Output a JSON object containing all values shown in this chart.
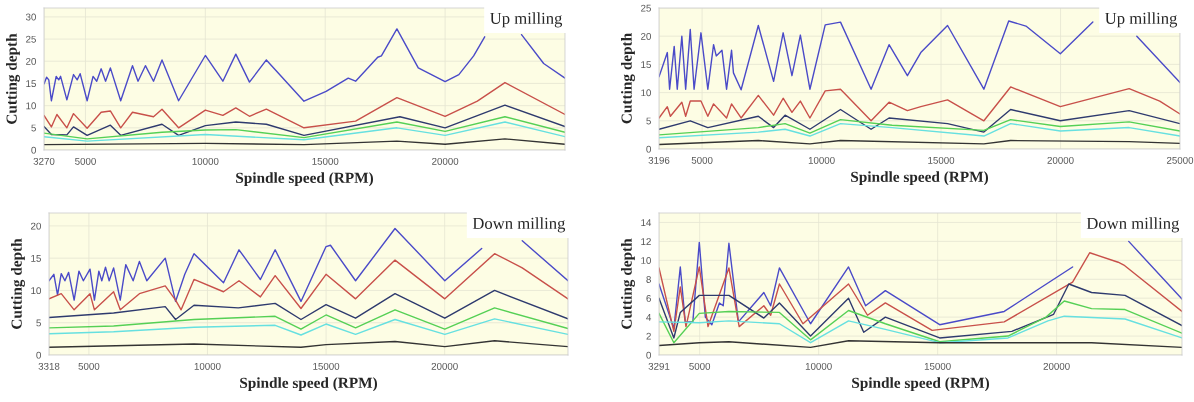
{
  "chart_data": [
    {
      "type": "line",
      "xlabel": "Spindle speed (RPM)",
      "ylabel": "Cutting depth",
      "annotations": [
        "Up milling"
      ],
      "xlim": [
        3270,
        25000
      ],
      "xticks": [
        3270,
        5000,
        10000,
        15000,
        20000
      ],
      "ylim": [
        0,
        32
      ],
      "yticks": [
        0,
        5,
        10,
        15,
        20,
        25,
        30
      ],
      "grid": true,
      "series": [
        {
          "color": "#4a4ac8",
          "x": [
            3270,
            3378,
            3470,
            3578,
            3778,
            3885,
            3962,
            4224,
            4500,
            4654,
            4777,
            5069,
            5316,
            5469,
            5654,
            5838,
            6038,
            6469,
            6961,
            7192,
            7500,
            7838,
            8192,
            8884,
            10000,
            10730,
            11270,
            11840,
            12544,
            14113,
            15036,
            15959,
            16267,
            17189,
            17343,
            17989,
            18880,
            20000,
            20573,
            21190,
            21650,
            22300,
            23187,
            24110,
            25000
          ],
          "values": [
            14.9,
            16.4,
            15.8,
            11.1,
            16.6,
            15.8,
            16.6,
            11.3,
            17.0,
            15.8,
            17.2,
            11.1,
            16.6,
            15.5,
            18.3,
            15.5,
            18.5,
            11.1,
            19.0,
            15.5,
            19.0,
            15.5,
            20.3,
            11.1,
            21.3,
            15.5,
            21.6,
            15.3,
            20.3,
            11.0,
            13.2,
            16.2,
            15.5,
            20.9,
            21.2,
            27.3,
            18.5,
            15.4,
            17.0,
            21.2,
            25.5,
            null,
            26.0,
            19.5,
            16.2
          ]
        },
        {
          "color": "#c8504a",
          "x": [
            3270,
            3578,
            3808,
            4224,
            4500,
            5069,
            5654,
            6038,
            6469,
            6961,
            7838,
            8192,
            8884,
            10000,
            10730,
            11270,
            11840,
            12544,
            14113,
            16267,
            17989,
            20000,
            21344,
            22495,
            25000
          ],
          "values": [
            7.8,
            5.2,
            8.0,
            5.0,
            8.2,
            4.9,
            8.5,
            8.8,
            5.0,
            8.5,
            7.5,
            9.2,
            5.0,
            9.0,
            7.8,
            9.5,
            7.6,
            9.2,
            5.0,
            6.5,
            11.8,
            7.6,
            11.0,
            15.2,
            8.0
          ]
        },
        {
          "color": "#2e3a6e",
          "x": [
            3270,
            3578,
            4224,
            4500,
            5069,
            6038,
            6469,
            8192,
            8884,
            10000,
            11270,
            12544,
            14113,
            18112,
            20000,
            22495,
            25000
          ],
          "values": [
            5.3,
            3.5,
            3.4,
            5.2,
            3.3,
            5.6,
            3.3,
            5.8,
            3.3,
            5.5,
            6.3,
            5.8,
            3.3,
            7.5,
            5.0,
            10.1,
            5.3
          ]
        },
        {
          "color": "#55d055",
          "x": [
            3270,
            5069,
            8192,
            10000,
            11270,
            14113,
            17989,
            20000,
            22495,
            25000
          ],
          "values": [
            3.8,
            2.5,
            4.0,
            4.5,
            4.6,
            2.8,
            6.3,
            4.2,
            7.5,
            4.0
          ]
        },
        {
          "color": "#66e0e0",
          "x": [
            3270,
            5069,
            10000,
            14113,
            17989,
            20000,
            22495,
            25000
          ],
          "values": [
            3.0,
            2.0,
            3.5,
            2.3,
            5.0,
            3.3,
            6.3,
            3.0
          ]
        },
        {
          "color": "#333333",
          "x": [
            3270,
            10000,
            14113,
            17989,
            20000,
            22495,
            25000
          ],
          "values": [
            1.2,
            1.5,
            1.2,
            2.0,
            1.3,
            2.5,
            1.3
          ]
        }
      ]
    },
    {
      "type": "line",
      "xlabel": "Spindle speed (RPM)",
      "ylabel": "Cutting depth",
      "annotations": [
        "Up milling"
      ],
      "xlim": [
        3196,
        25000
      ],
      "xticks": [
        3196,
        5000,
        10000,
        15000,
        20000,
        25000
      ],
      "ylim": [
        0,
        25
      ],
      "yticks": [
        0,
        5,
        10,
        15,
        20,
        25
      ],
      "grid": true,
      "series": [
        {
          "color": "#4a4ac8",
          "x": [
            3196,
            3544,
            3640,
            3832,
            3960,
            4152,
            4312,
            4504,
            4664,
            4952,
            5240,
            5480,
            5592,
            5832,
            6024,
            6232,
            6312,
            6632,
            7352,
            7992,
            8392,
            8760,
            9112,
            9512,
            10152,
            10792,
            12072,
            12824,
            13592,
            14152,
            15272,
            16792,
            17832,
            18552,
            19992,
            21352,
            22232,
            23192,
            25000
          ],
          "values": [
            12.8,
            17.1,
            10.6,
            18.2,
            10.6,
            20.0,
            10.6,
            21.2,
            10.6,
            20.6,
            10.6,
            18.5,
            16.5,
            17.5,
            10.6,
            17.5,
            13.5,
            10.5,
            21.9,
            12.0,
            20.6,
            13.0,
            20.2,
            10.6,
            22.0,
            22.5,
            10.6,
            18.5,
            13.0,
            17.1,
            21.9,
            10.6,
            22.7,
            21.8,
            16.9,
            22.5,
            null,
            20.0,
            11.8
          ]
        },
        {
          "color": "#c8504a",
          "x": [
            3196,
            3544,
            3672,
            4152,
            4312,
            4504,
            4952,
            5240,
            5480,
            6024,
            6232,
            6632,
            7352,
            7992,
            8392,
            8760,
            9112,
            9512,
            10152,
            10792,
            12072,
            12824,
            13592,
            14152,
            15272,
            16792,
            17912,
            19992,
            22872,
            24152,
            25000
          ],
          "values": [
            5.5,
            7.5,
            5.8,
            8.3,
            5.8,
            8.5,
            8.5,
            5.8,
            8.0,
            5.5,
            8.0,
            5.5,
            9.5,
            6.0,
            9.0,
            6.5,
            8.5,
            5.5,
            10.3,
            10.6,
            5.0,
            8.3,
            6.8,
            7.5,
            8.7,
            5.0,
            11.0,
            7.5,
            10.7,
            8.5,
            6.2
          ]
        },
        {
          "color": "#2e3a6e",
          "x": [
            3196,
            4504,
            5240,
            7352,
            7992,
            8472,
            9512,
            10792,
            12072,
            12824,
            15272,
            16792,
            17912,
            19992,
            22872,
            25000
          ],
          "values": [
            3.5,
            5.0,
            3.8,
            5.8,
            3.8,
            6.0,
            3.5,
            7.0,
            3.5,
            5.5,
            4.5,
            3.0,
            7.0,
            5.0,
            6.8,
            4.5
          ]
        },
        {
          "color": "#55d055",
          "x": [
            3196,
            7352,
            8472,
            9512,
            10792,
            12952,
            16792,
            17912,
            19992,
            22872,
            25000
          ],
          "values": [
            2.5,
            3.8,
            4.5,
            2.8,
            5.2,
            4.2,
            3.3,
            5.2,
            4.0,
            4.8,
            3.2
          ]
        },
        {
          "color": "#66e0e0",
          "x": [
            3196,
            7352,
            8472,
            9512,
            10792,
            12952,
            16792,
            17912,
            19992,
            22872,
            25000
          ],
          "values": [
            2.0,
            3.0,
            3.5,
            2.3,
            4.5,
            3.8,
            2.3,
            4.5,
            3.2,
            3.8,
            2.3
          ]
        },
        {
          "color": "#333333",
          "x": [
            3196,
            7352,
            9512,
            10792,
            16792,
            17912,
            22872,
            25000
          ],
          "values": [
            0.8,
            1.5,
            0.9,
            1.5,
            0.9,
            1.5,
            1.3,
            1.0
          ]
        }
      ]
    },
    {
      "type": "line",
      "xlabel": "Spindle speed (RPM)",
      "ylabel": "Cutting depth",
      "annotations": [
        "Down milling"
      ],
      "xlim": [
        3318,
        25200
      ],
      "xticks": [
        3318,
        5000,
        10000,
        15000,
        20000
      ],
      "ylim": [
        0,
        22
      ],
      "yticks": [
        0,
        5,
        10,
        15,
        20
      ],
      "grid": true,
      "series": [
        {
          "color": "#4a4ac8",
          "x": [
            3318,
            3523,
            3678,
            3834,
            3989,
            4145,
            4378,
            4580,
            4767,
            5047,
            5233,
            5420,
            5544,
            5700,
            5855,
            6042,
            6322,
            6555,
            6866,
            7130,
            7441,
            8219,
            8654,
            9043,
            9432,
            10676,
            11329,
            12231,
            12853,
            13942,
            14999,
            15185,
            16243,
            17907,
            20006,
            21561,
            22338,
            23271,
            25200
          ],
          "values": [
            11.5,
            12.5,
            9.3,
            12.6,
            11.5,
            12.8,
            8.5,
            13.0,
            11.5,
            13.3,
            8.5,
            13.0,
            11.5,
            13.6,
            11.5,
            13.5,
            8.5,
            14.0,
            11.5,
            14.5,
            11.5,
            15.0,
            8.3,
            12.5,
            15.7,
            11.2,
            16.3,
            11.7,
            16.3,
            8.3,
            16.8,
            17.0,
            11.5,
            19.6,
            11.5,
            16.5,
            null,
            17.7,
            11.5
          ]
        },
        {
          "color": "#c8504a",
          "x": [
            3318,
            3834,
            4378,
            5047,
            5233,
            6042,
            6322,
            7130,
            8219,
            8654,
            8888,
            9432,
            10676,
            11329,
            12231,
            12853,
            13942,
            14999,
            16243,
            17907,
            20006,
            22105,
            23271,
            25200
          ],
          "values": [
            8.7,
            9.5,
            7.0,
            9.5,
            7.0,
            9.8,
            7.0,
            9.5,
            10.7,
            8.5,
            7.0,
            11.7,
            9.8,
            11.5,
            9.0,
            12.3,
            7.2,
            12.5,
            8.7,
            14.7,
            8.7,
            15.7,
            13.5,
            8.7
          ]
        },
        {
          "color": "#2e3a6e",
          "x": [
            3318,
            6042,
            8219,
            8654,
            9432,
            11298,
            12853,
            13942,
            14999,
            16243,
            17907,
            20006,
            22105,
            25200
          ],
          "values": [
            5.8,
            6.5,
            7.5,
            5.5,
            7.7,
            7.3,
            8.0,
            5.5,
            7.8,
            5.7,
            9.5,
            5.7,
            10.0,
            5.6
          ]
        },
        {
          "color": "#55d055",
          "x": [
            3318,
            6042,
            9432,
            12853,
            13942,
            14999,
            16243,
            17907,
            20006,
            22105,
            25200
          ],
          "values": [
            4.2,
            4.5,
            5.5,
            6.0,
            4.0,
            6.2,
            4.2,
            7.0,
            4.0,
            7.3,
            4.1
          ]
        },
        {
          "color": "#66e0e0",
          "x": [
            3318,
            6042,
            9432,
            12853,
            13942,
            14999,
            16243,
            17907,
            20006,
            22105,
            25200
          ],
          "values": [
            3.3,
            3.6,
            4.3,
            4.6,
            3.1,
            4.8,
            3.2,
            5.5,
            3.2,
            5.6,
            3.2
          ]
        },
        {
          "color": "#333333",
          "x": [
            3318,
            9432,
            13942,
            14999,
            17907,
            20006,
            22105,
            25200
          ],
          "values": [
            1.2,
            1.7,
            1.2,
            1.6,
            2.1,
            1.3,
            2.2,
            1.3
          ]
        }
      ]
    },
    {
      "type": "line",
      "xlabel": "Spindle speed (RPM)",
      "ylabel": "Cutting depth",
      "annotations": [
        "Down milling"
      ],
      "xlim": [
        3291,
        25270
      ],
      "xticks": [
        3291,
        5000,
        10000,
        15000,
        20000
      ],
      "ylim": [
        0,
        15
      ],
      "yticks": [
        0,
        2,
        4,
        6,
        8,
        10,
        12,
        14
      ],
      "grid": true,
      "series": [
        {
          "color": "#4a4ac8",
          "x": [
            3291,
            3755,
            3915,
            4186,
            4394,
            4713,
            4984,
            5239,
            5511,
            5830,
            5990,
            6229,
            6628,
            7697,
            7984,
            8352,
            9660,
            11256,
            11974,
            12804,
            15086,
            17799,
            20672,
            21470,
            23031,
            25270
          ],
          "values": [
            7.5,
            4.0,
            2.8,
            9.3,
            3.5,
            3.5,
            11.9,
            4.0,
            3.2,
            5.5,
            5.2,
            11.8,
            3.5,
            6.6,
            5.2,
            9.2,
            3.3,
            9.3,
            5.2,
            6.8,
            3.2,
            4.6,
            9.3,
            null,
            12.0,
            5.9
          ]
        },
        {
          "color": "#c8504a",
          "x": [
            3291,
            3915,
            4186,
            4425,
            4984,
            5351,
            6229,
            6660,
            7697,
            7984,
            8352,
            9341,
            11256,
            12054,
            12804,
            14768,
            17799,
            20672,
            21391,
            22588,
            22827,
            25270
          ],
          "values": [
            9.2,
            2.5,
            7.2,
            3.0,
            9.3,
            3.0,
            9.2,
            3.0,
            5.2,
            4.2,
            7.5,
            3.3,
            7.5,
            4.2,
            5.5,
            2.6,
            3.5,
            7.7,
            10.8,
            9.8,
            9.5,
            4.6
          ]
        },
        {
          "color": "#2e3a6e",
          "x": [
            3291,
            3915,
            4186,
            4984,
            6229,
            7697,
            8352,
            9660,
            11256,
            11895,
            12804,
            15086,
            18119,
            19875,
            20513,
            21470,
            22876,
            25270
          ],
          "values": [
            6.0,
            1.8,
            4.5,
            6.3,
            6.3,
            3.9,
            5.5,
            2.0,
            6.0,
            2.4,
            4.0,
            1.8,
            2.5,
            4.3,
            7.5,
            6.6,
            6.3,
            3.1
          ]
        },
        {
          "color": "#55d055",
          "x": [
            3291,
            3915,
            4984,
            6229,
            8352,
            9660,
            11256,
            12804,
            15086,
            17959,
            19556,
            20322,
            21470,
            22876,
            25270
          ],
          "values": [
            4.4,
            1.3,
            4.4,
            4.6,
            4.5,
            1.6,
            4.7,
            3.3,
            1.4,
            2.0,
            4.0,
            5.7,
            4.9,
            4.8,
            2.3
          ]
        },
        {
          "color": "#66e0e0",
          "x": [
            3291,
            4984,
            6229,
            8352,
            9660,
            11256,
            12804,
            15086,
            17959,
            19636,
            20322,
            22876,
            25270
          ],
          "values": [
            3.5,
            3.4,
            3.6,
            3.3,
            1.3,
            3.6,
            2.7,
            1.3,
            1.8,
            3.6,
            4.1,
            3.8,
            1.8
          ]
        },
        {
          "color": "#333333",
          "x": [
            3291,
            4984,
            6229,
            9660,
            11256,
            15086,
            18279,
            21470,
            25270
          ],
          "values": [
            1.0,
            1.3,
            1.4,
            0.8,
            1.5,
            1.3,
            1.3,
            1.3,
            0.8
          ]
        }
      ]
    }
  ]
}
